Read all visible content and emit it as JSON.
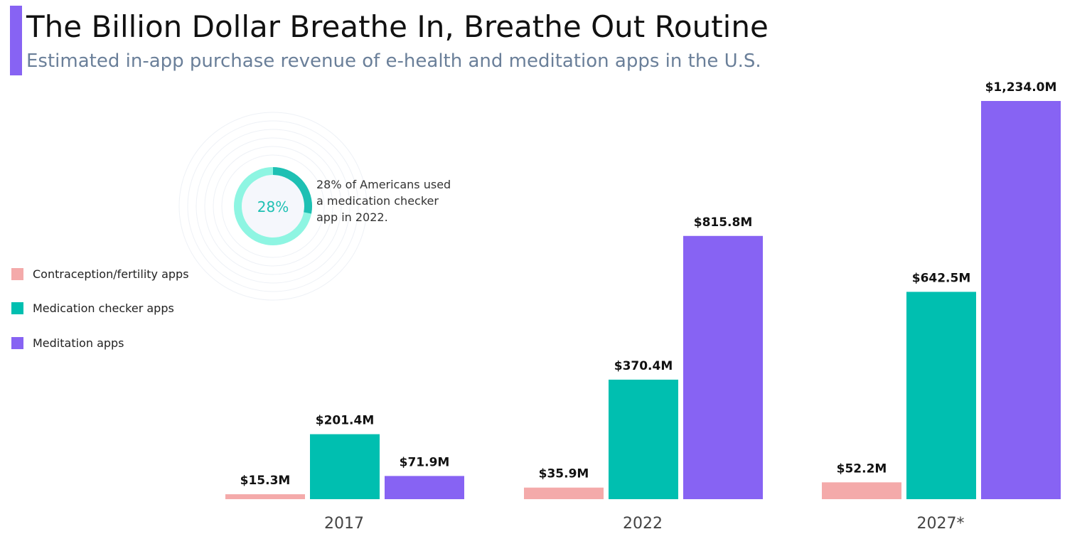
{
  "header": {
    "title": "The Billion Dollar Breathe In, Breathe Out Routine",
    "subtitle": "Estimated in-app purchase revenue of e-health and meditation apps in the U.S."
  },
  "colors": {
    "accent": "#8763F3",
    "contraception": "#F4AAAA",
    "medication": "#00BFB0",
    "meditation": "#8763F3",
    "donut_light": "#8EF5E2",
    "donut_dark": "#1EC0B3"
  },
  "annotation": {
    "percent_label": "28%",
    "percent_value": 28,
    "text": "28% of Americans used a medication checker app in 2022."
  },
  "chart_data": {
    "type": "bar",
    "title": "The Billion Dollar Breathe In, Breathe Out Routine",
    "subtitle": "Estimated in-app purchase revenue of e-health and meditation apps in the U.S.",
    "categories": [
      "2017",
      "2022",
      "2027*"
    ],
    "series": [
      {
        "name": "Contraception/fertility apps",
        "color": "#F4AAAA",
        "values": [
          15.3,
          35.9,
          52.2
        ],
        "labels": [
          "$15.3M",
          "$35.9M",
          "$52.2M"
        ]
      },
      {
        "name": "Medication checker apps",
        "color": "#00BFB0",
        "values": [
          201.4,
          370.4,
          642.5
        ],
        "labels": [
          "$201.4M",
          "$370.4M",
          "$642.5M"
        ]
      },
      {
        "name": "Meditation apps",
        "color": "#8763F3",
        "values": [
          71.9,
          815.8,
          1234.0
        ],
        "labels": [
          "$71.9M",
          "$815.8M",
          "$1,234.0M"
        ]
      }
    ],
    "ylim": [
      0,
      1234
    ],
    "grid": false,
    "legend_position": "left"
  }
}
